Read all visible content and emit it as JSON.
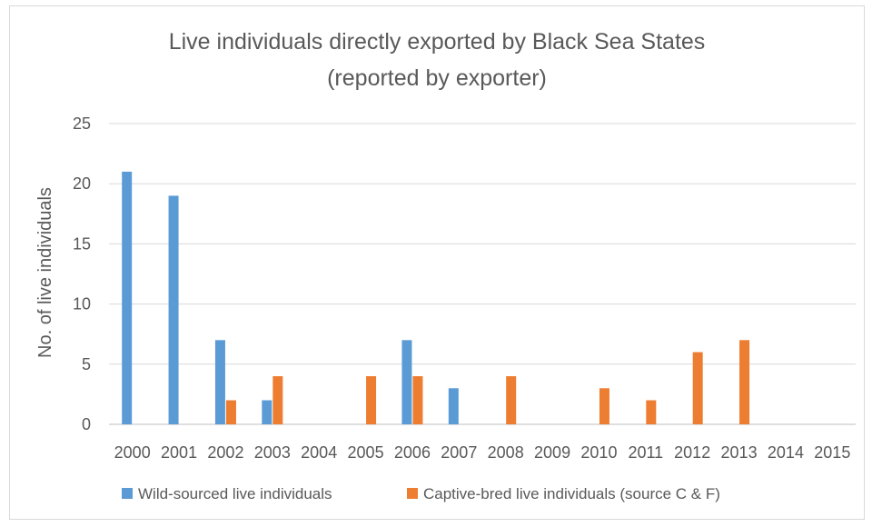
{
  "chart_data": {
    "type": "bar",
    "title": "Live individuals directly exported by Black Sea States",
    "subtitle": "(reported by exporter)",
    "xlabel": "",
    "ylabel": "No. of live individuals",
    "ylim": [
      0,
      25
    ],
    "yticks": [
      "0",
      "5",
      "10",
      "15",
      "20",
      "25"
    ],
    "grid": true,
    "legend_position": "bottom",
    "categories": [
      "2000",
      "2001",
      "2002",
      "2003",
      "2004",
      "2005",
      "2006",
      "2007",
      "2008",
      "2009",
      "2010",
      "2011",
      "2012",
      "2013",
      "2014",
      "2015"
    ],
    "series": [
      {
        "name": "Wild-sourced live individuals",
        "color": "#5b9bd5",
        "values": [
          21,
          19,
          7,
          2,
          0,
          0,
          7,
          3,
          0,
          0,
          0,
          0,
          0,
          0,
          0,
          0
        ]
      },
      {
        "name": "Captive-bred live individuals (source C & F)",
        "color": "#ed7d31",
        "values": [
          0,
          0,
          2,
          4,
          0,
          4,
          4,
          0,
          4,
          0,
          3,
          2,
          6,
          7,
          0,
          0
        ]
      }
    ]
  }
}
